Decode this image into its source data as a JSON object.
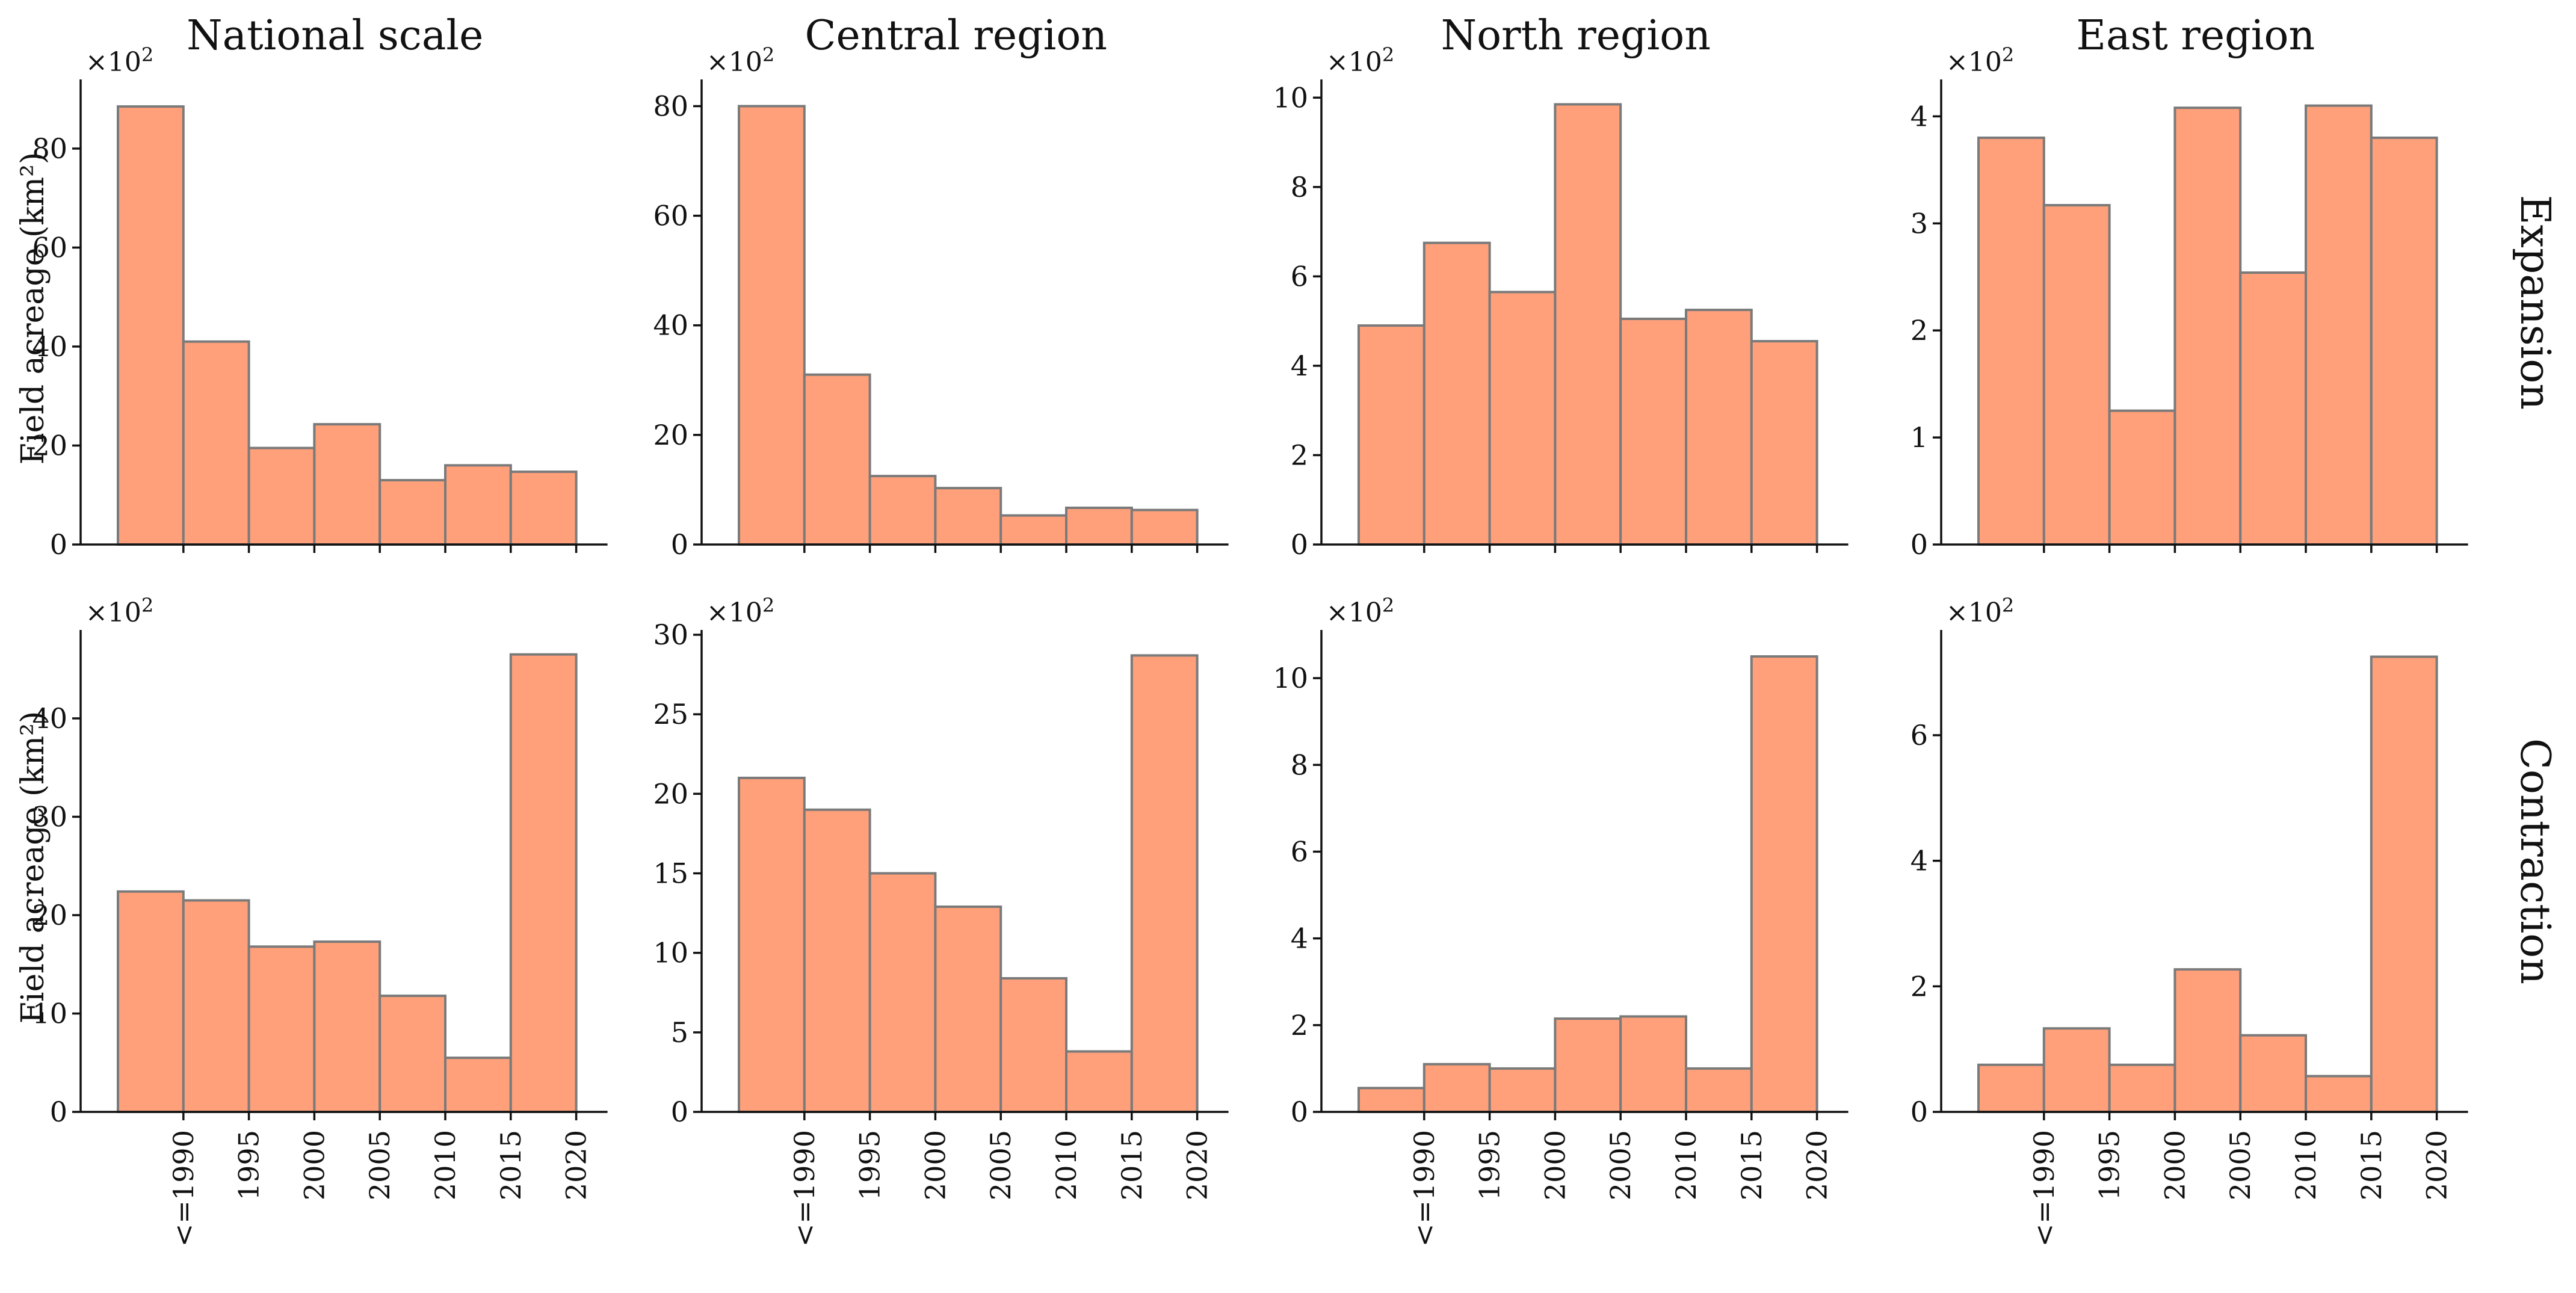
{
  "figure": {
    "col_titles": [
      "National scale",
      "Central region",
      "North region",
      "East region"
    ],
    "row_labels": [
      "Expansion",
      "Contraction"
    ],
    "ylabel": "Field acreage (km²)",
    "scale_prefix": "×10",
    "scale_exp": "2",
    "colors": {
      "bar_fill": "#FFA07A",
      "bar_edge": "#7a7a7a",
      "axis": "#111111"
    }
  },
  "chart_data": [
    {
      "type": "bar",
      "row": "Expansion",
      "title": "National scale",
      "ylabel": "Field acreage (km²)",
      "ylim": [
        0,
        93
      ],
      "yticks": [
        0,
        20,
        40,
        60,
        80
      ],
      "xtick_labels": [
        "<=1990",
        "1995",
        "2000",
        "2005",
        "2010",
        "2015",
        "2020"
      ],
      "values": [
        88.5,
        41,
        19.5,
        24.3,
        13,
        16,
        14.7
      ]
    },
    {
      "type": "bar",
      "row": "Expansion",
      "title": "Central region",
      "ylabel": "",
      "ylim": [
        0,
        84
      ],
      "yticks": [
        0,
        20,
        40,
        60,
        80
      ],
      "xtick_labels": [
        "<=1990",
        "1995",
        "2000",
        "2005",
        "2010",
        "2015",
        "2020"
      ],
      "values": [
        80,
        31,
        12.5,
        10.3,
        5.3,
        6.7,
        6.3
      ]
    },
    {
      "type": "bar",
      "row": "Expansion",
      "title": "North region",
      "ylabel": "",
      "ylim": [
        0,
        10.3
      ],
      "yticks": [
        0,
        2,
        4,
        6,
        8,
        10
      ],
      "xtick_labels": [
        "<=1990",
        "1995",
        "2000",
        "2005",
        "2010",
        "2015",
        "2020"
      ],
      "values": [
        4.9,
        6.75,
        5.65,
        9.85,
        5.05,
        5.25,
        4.55
      ]
    },
    {
      "type": "bar",
      "row": "Expansion",
      "title": "East region",
      "ylabel": "",
      "ylim": [
        0,
        4.3
      ],
      "yticks": [
        0,
        1,
        2,
        3,
        4
      ],
      "xtick_labels": [
        "<=1990",
        "1995",
        "2000",
        "2005",
        "2010",
        "2015",
        "2020"
      ],
      "values": [
        3.8,
        3.17,
        1.25,
        4.08,
        2.54,
        4.1,
        3.8
      ]
    },
    {
      "type": "bar",
      "row": "Contraction",
      "title": "National scale",
      "ylabel": "Field acreage (km²)",
      "ylim": [
        0,
        48.5
      ],
      "yticks": [
        0,
        10,
        20,
        30,
        40
      ],
      "xtick_labels": [
        "<=1990",
        "1995",
        "2000",
        "2005",
        "2010",
        "2015",
        "2020"
      ],
      "values": [
        22.4,
        21.5,
        16.8,
        17.3,
        11.8,
        5.5,
        46.5
      ]
    },
    {
      "type": "bar",
      "row": "Contraction",
      "title": "Central region",
      "ylabel": "",
      "ylim": [
        0,
        30
      ],
      "yticks": [
        0,
        5,
        10,
        15,
        20,
        25,
        30
      ],
      "xtick_labels": [
        "<=1990",
        "1995",
        "2000",
        "2005",
        "2010",
        "2015",
        "2020"
      ],
      "values": [
        21,
        19,
        15,
        12.9,
        8.4,
        3.8,
        28.7
      ]
    },
    {
      "type": "bar",
      "row": "Contraction",
      "title": "North region",
      "ylabel": "",
      "ylim": [
        0,
        11
      ],
      "yticks": [
        0,
        2,
        4,
        6,
        8,
        10
      ],
      "xtick_labels": [
        "<=1990",
        "1995",
        "2000",
        "2005",
        "2010",
        "2015",
        "2020"
      ],
      "values": [
        0.55,
        1.1,
        1.0,
        2.15,
        2.2,
        1.0,
        10.5
      ]
    },
    {
      "type": "bar",
      "row": "Contraction",
      "title": "East region",
      "ylabel": "",
      "ylim": [
        0,
        7.6
      ],
      "yticks": [
        0,
        2,
        4,
        6
      ],
      "xtick_labels": [
        "<=1990",
        "1995",
        "2000",
        "2005",
        "2010",
        "2015",
        "2020"
      ],
      "values": [
        0.75,
        1.33,
        0.75,
        2.27,
        1.22,
        0.57,
        7.25
      ]
    }
  ]
}
